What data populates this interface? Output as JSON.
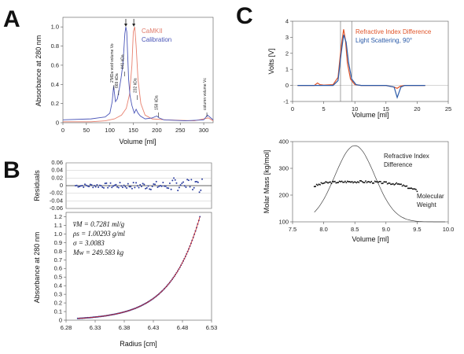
{
  "panels": {
    "A": {
      "letter": "A"
    },
    "B": {
      "letter": "B"
    },
    "C": {
      "letter": "C"
    }
  },
  "chart_data": [
    {
      "id": "A",
      "type": "line",
      "xlabel": "Volume [ml]",
      "ylabel": "Absorbance at 280 nm",
      "xlim": [
        0,
        320
      ],
      "ylim": [
        0,
        1.1
      ],
      "xticks": [
        "0",
        "50",
        "100",
        "150",
        "200",
        "250",
        "300"
      ],
      "yticks": [
        "0",
        "0.2",
        "0.4",
        "0.6",
        "0.8",
        "1.0"
      ],
      "legend": "top-right",
      "series": [
        {
          "name": "CaMKII",
          "color": "#e8806e",
          "x": [
            0,
            60,
            90,
            110,
            125,
            135,
            142,
            147,
            150,
            153,
            156,
            160,
            166,
            175,
            190,
            220,
            280,
            300,
            310,
            320
          ],
          "y": [
            0.01,
            0.01,
            0.02,
            0.04,
            0.08,
            0.15,
            0.3,
            0.6,
            0.95,
            1.0,
            0.8,
            0.45,
            0.2,
            0.08,
            0.04,
            0.03,
            0.02,
            0.04,
            0.05,
            0.02
          ]
        },
        {
          "name": "Calibration",
          "color": "#4a55b8",
          "x": [
            0,
            60,
            90,
            100,
            105,
            108,
            112,
            116,
            120,
            124,
            128,
            132,
            134,
            136,
            138,
            140,
            143,
            147,
            152,
            156,
            160,
            165,
            175,
            190,
            200,
            205,
            215,
            260,
            300,
            308,
            320
          ],
          "y": [
            0.03,
            0.04,
            0.06,
            0.1,
            0.22,
            0.38,
            0.22,
            0.25,
            0.35,
            0.47,
            0.62,
            0.93,
            1.0,
            0.95,
            0.7,
            0.45,
            0.28,
            0.18,
            0.1,
            0.14,
            0.1,
            0.07,
            0.04,
            0.05,
            0.07,
            0.05,
            0.03,
            0.02,
            0.03,
            0.08,
            0.03
          ]
        }
      ],
      "annotations": [
        "2'MDa void volume Vo",
        "669 kDa",
        "440 kDa",
        "232 kDa",
        "158 kDa",
        "column volume Vc"
      ],
      "annotation_x": [
        107,
        117,
        130,
        157,
        202,
        305
      ]
    },
    {
      "id": "B-residuals",
      "type": "scatter",
      "ylabel": "Residuals",
      "xlim": [
        6.28,
        6.53
      ],
      "ylim": [
        -0.06,
        0.06
      ],
      "yticks": [
        "0.06",
        "0.04",
        "0.02",
        "0",
        "-0.02",
        "-0.04",
        "-0.06"
      ],
      "grid": true
    },
    {
      "id": "B-fit",
      "type": "scatter",
      "xlabel": "Radius [cm]",
      "ylabel": "Absorbance at 280 nm",
      "xlim": [
        6.28,
        6.53
      ],
      "ylim": [
        0,
        1.25
      ],
      "xticks": [
        "6.28",
        "6.33",
        "6.38",
        "6.43",
        "6.48",
        "6.53"
      ],
      "yticks": [
        "0",
        "0.1",
        "0.2",
        "0.3",
        "0.4",
        "0.5",
        "0.6",
        "0.7",
        "0.8",
        "0.9",
        "1.0",
        "1.1",
        "1.2"
      ],
      "equations": [
        "v̅M = 0.7281 ml/g",
        "ρs = 1.00293 g/ml",
        "σ = 3.0083",
        "Mw = 249.583 kg"
      ],
      "fit_curve": {
        "color": "#cc2222",
        "x0": 6.3,
        "x1": 6.51,
        "y0": 0.02,
        "y1": 1.2,
        "k": 24.4
      },
      "points_color": "#2c3ea0"
    },
    {
      "id": "C-top",
      "type": "line",
      "xlabel": "Volume [ml]",
      "ylabel": "Volts [V]",
      "xlim": [
        0,
        25
      ],
      "ylim": [
        -1,
        4
      ],
      "xticks": [
        "0",
        "5",
        "10",
        "15",
        "20",
        "25"
      ],
      "yticks": [
        "-1",
        "0",
        "1",
        "2",
        "3",
        "4"
      ],
      "legend": "top-right",
      "vlines": [
        7.7,
        9.5
      ],
      "series": [
        {
          "name": "Refractive Index Difference",
          "color": "#e0552a",
          "x": [
            0.8,
            3.5,
            4.0,
            4.4,
            5.0,
            6.5,
            7.3,
            7.8,
            8.2,
            8.5,
            8.8,
            9.3,
            10.0,
            11,
            15,
            16.3,
            16.8,
            17.3,
            18,
            21.3
          ],
          "y": [
            0,
            0,
            0.15,
            0.05,
            0.02,
            0.05,
            0.5,
            2.4,
            3.5,
            2.8,
            1.4,
            0.4,
            0.05,
            0,
            0,
            -0.1,
            -0.18,
            -0.05,
            0,
            0
          ]
        },
        {
          "name": "Light Scattering, 90°",
          "color": "#2a5aa8",
          "x": [
            0.8,
            6.5,
            7.3,
            7.8,
            8.2,
            8.6,
            9.0,
            9.5,
            10.2,
            11,
            15,
            16.3,
            16.8,
            17.4,
            18,
            21.3
          ],
          "y": [
            0,
            0,
            0.3,
            2.0,
            3.15,
            2.7,
            1.4,
            0.4,
            0.05,
            0,
            0,
            -0.1,
            -0.75,
            -0.1,
            0,
            0
          ]
        }
      ]
    },
    {
      "id": "C-bottom",
      "type": "scatter",
      "xlabel": "Volume [ml]",
      "ylabel": "Molar Mass [kg/mol]",
      "xlim": [
        7.5,
        10.0
      ],
      "ylim": [
        100,
        400
      ],
      "xticks": [
        "7.5",
        "8.0",
        "8.5",
        "9.0",
        "9.5",
        "10.0"
      ],
      "yticks": [
        "100",
        "200",
        "300",
        "400"
      ],
      "labels": [
        "Refractive Index",
        "Difference",
        "Molecular",
        "Weight"
      ],
      "ri_curve": {
        "center": 8.5,
        "peak": 385,
        "base": 100,
        "sigma": 0.32
      },
      "mw_points": {
        "x0": 7.85,
        "x1": 9.5,
        "level": 250
      }
    }
  ],
  "legend_A": [
    "CaMKII",
    "Calibration"
  ],
  "legend_C": [
    "Refractive Index Difference",
    "Light Scattering, 90°"
  ],
  "colors": {
    "red": "#e8806e",
    "blue": "#4a55b8",
    "fit_red": "#cc2222",
    "ls_blue": "#2a5aa8",
    "ri_orange": "#e0552a"
  }
}
